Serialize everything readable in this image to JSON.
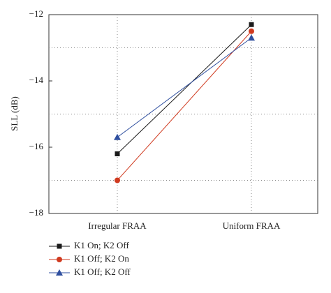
{
  "chart_data": {
    "type": "line",
    "y_label": "SLL (dB)",
    "categories": [
      "Irregular FRAA",
      "Uniform FRAA"
    ],
    "series": [
      {
        "name": "K1 On; K2 Off",
        "color": "#1a1a1a",
        "marker": "square",
        "values": [
          -16.2,
          -12.3
        ]
      },
      {
        "name": "K1 Off; K2 On",
        "color": "#d03a1f",
        "marker": "circle",
        "values": [
          -17.0,
          -12.5
        ]
      },
      {
        "name": "K1 Off; K2 Off",
        "color": "#2f4f9f",
        "marker": "triangle",
        "values": [
          -15.7,
          -12.7
        ]
      }
    ],
    "ylim": [
      -18,
      -12
    ],
    "yticks": [
      {
        "value": -18,
        "label": "−18"
      },
      {
        "value": -16,
        "label": "−16"
      },
      {
        "value": -14,
        "label": "−14"
      },
      {
        "value": -12,
        "label": "−12"
      }
    ],
    "yminor": [
      -17,
      -15,
      -13
    ],
    "grid": true
  }
}
